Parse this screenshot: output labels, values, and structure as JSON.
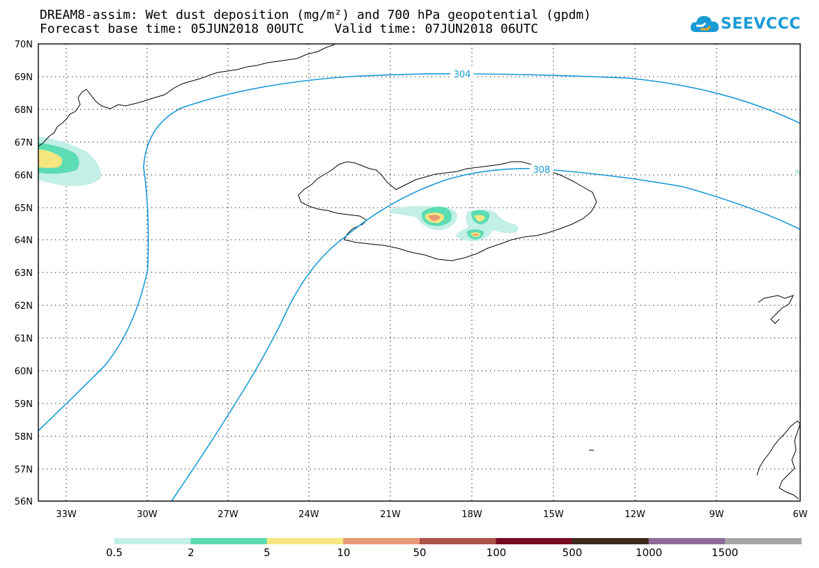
{
  "title": {
    "line1": "DREAM8-assim: Wet dust deposition (mg/m²) and 700 hPa geopotential (gpdm)",
    "line2": "Forecast base time: 05JUN2018 00UTC    Valid time: 07JUN2018 06UTC"
  },
  "logo": {
    "text": "SEEVCCC",
    "icon": "cloud-icon",
    "color": "#1a9ad6"
  },
  "map": {
    "region": "North Atlantic - Iceland",
    "lat_labels": [
      "70N",
      "69N",
      "68N",
      "67N",
      "66N",
      "65N",
      "64N",
      "63N",
      "62N",
      "61N",
      "60N",
      "59N",
      "58N",
      "57N",
      "56N"
    ],
    "lon_labels": [
      "33W",
      "30W",
      "27W",
      "24W",
      "21W",
      "18W",
      "15W",
      "12W",
      "9W",
      "6W"
    ],
    "contours": [
      {
        "label": "304",
        "unit": "gpdm",
        "color": "#1a9ad6"
      },
      {
        "label": "308",
        "unit": "gpdm",
        "color": "#1a9ad6"
      }
    ]
  },
  "colorbar": {
    "labels": [
      "0.5",
      "2",
      "5",
      "10",
      "50",
      "100",
      "500",
      "1000",
      "1500"
    ],
    "colors": [
      "#c2efe6",
      "#5cdcb3",
      "#f7e680",
      "#e99a78",
      "#ad5246",
      "#7a0a22",
      "#3b2a1c",
      "#8c6b98",
      "#a6a6a6"
    ]
  }
}
